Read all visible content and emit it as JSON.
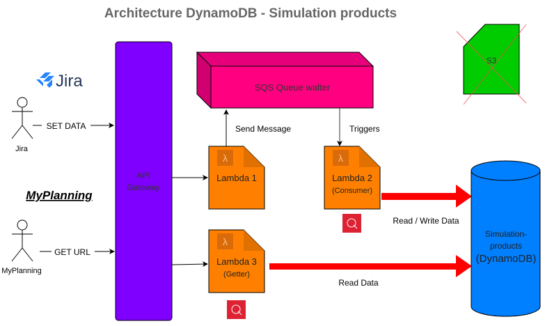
{
  "title": "Architecture DynamoDB - Simulation products",
  "jira_logo": {
    "text": "Jira",
    "color": "#2684FF"
  },
  "actors": [
    {
      "label": "Jira",
      "action": "SET DATA"
    },
    {
      "label": "MyPlanning",
      "action": "GET URL"
    }
  ],
  "myplanning_heading": "MyPlanning",
  "api_gateway": {
    "line1": "API",
    "line2": "Gateway",
    "color": "#7F00FF"
  },
  "sqs": {
    "label": "SQS Queue walter",
    "color": "#FF0080"
  },
  "lambdas": [
    {
      "name": "Lambda 1",
      "sub": ""
    },
    {
      "name": "Lambda 2",
      "sub": "(Consumer)"
    },
    {
      "name": "Lambda 3",
      "sub": "(Getter)"
    }
  ],
  "lambda_color": "#FF8000",
  "edges": {
    "send_message": "Send Message",
    "triggers": "Triggers",
    "read_write": "Read / Write Data",
    "read": "Read Data"
  },
  "s3": {
    "label": "S3",
    "color": "#00CC00",
    "crossed_out": true
  },
  "dynamodb": {
    "line1": "Simulation-",
    "line2": "products",
    "line3": "(DynamoDB)",
    "color": "#007FFF"
  },
  "arrow_color": "#FF0000"
}
